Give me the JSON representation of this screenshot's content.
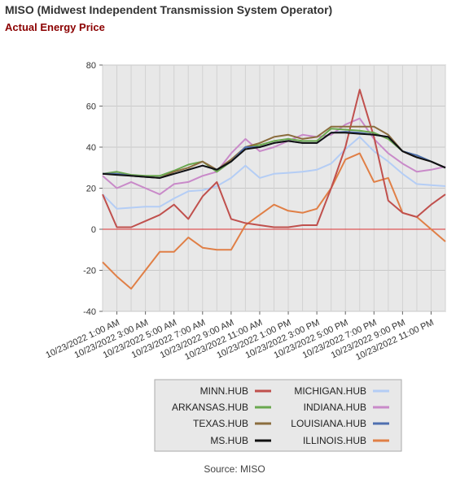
{
  "title": "MISO (Midwest Independent Transmission System Operator)",
  "subtitle": "Actual Energy Price",
  "source": "Source: MISO",
  "chart_data": {
    "type": "line",
    "ylim": [
      -40,
      80
    ],
    "yticks": [
      -40,
      -20,
      0,
      20,
      40,
      60,
      80
    ],
    "xlim": [
      0,
      23
    ],
    "xtick_labels": [
      "10/23/2022 1:00 AM",
      "10/23/2022 3:00 AM",
      "10/23/2022 5:00 AM",
      "10/23/2022 7:00 AM",
      "10/23/2022 9:00 AM",
      "10/23/2022 11:00 AM",
      "10/23/2022 1:00 PM",
      "10/23/2022 3:00 PM",
      "10/23/2022 5:00 PM",
      "10/23/2022 7:00 PM",
      "10/23/2022 9:00 PM",
      "10/23/2022 11:00 PM"
    ],
    "xtick_positions": [
      1,
      3,
      5,
      7,
      9,
      11,
      13,
      15,
      17,
      19,
      21,
      23
    ],
    "zero_line_color": "#dd3333",
    "grid": true,
    "legend_position": "bottom",
    "series": [
      {
        "name": "MINN.HUB",
        "color": "#c0504d",
        "values": [
          17,
          1,
          1,
          4,
          7,
          12,
          5,
          16,
          23,
          5,
          3,
          2,
          1,
          1,
          2,
          2,
          20,
          40,
          68,
          45,
          14,
          8,
          6,
          12,
          17
        ]
      },
      {
        "name": "MICHIGAN.HUB",
        "color": "#b4cdf5",
        "values": [
          17,
          10,
          10.5,
          11,
          11,
          15,
          18.5,
          19,
          21,
          25,
          31,
          25,
          27,
          27.5,
          28,
          29,
          32,
          39,
          45,
          38,
          33,
          27,
          22,
          21.5,
          21
        ]
      },
      {
        "name": "ARKANSAS.HUB",
        "color": "#6aa84f",
        "values": [
          27,
          28,
          26.5,
          26,
          26,
          28.5,
          31.5,
          33,
          28,
          33,
          40,
          41,
          43,
          44,
          43,
          43,
          49,
          48.5,
          48,
          47,
          44,
          38,
          36,
          33,
          30
        ]
      },
      {
        "name": "INDIANA.HUB",
        "color": "#c98ac9",
        "values": [
          26,
          20,
          23,
          20,
          17,
          22,
          23,
          26,
          28,
          37,
          44,
          38,
          40,
          43,
          46,
          45,
          46,
          51,
          54,
          44,
          37,
          32,
          28,
          29,
          30.5
        ]
      },
      {
        "name": "TEXAS.HUB",
        "color": "#8b6d3e",
        "values": [
          27,
          27,
          26,
          25.5,
          25,
          28,
          30,
          33,
          29,
          34,
          40,
          42,
          45,
          46,
          44,
          45,
          50,
          50,
          50,
          50,
          46,
          38,
          35,
          33,
          30
        ]
      },
      {
        "name": "LOUISIANA.HUB",
        "color": "#4f6fb0",
        "values": [
          27,
          27,
          26,
          25.5,
          25,
          27,
          29,
          31,
          29,
          33,
          40,
          40,
          42,
          43,
          42,
          42,
          47,
          47.5,
          47,
          46,
          45,
          38,
          36,
          33,
          30
        ]
      },
      {
        "name": "MS.HUB",
        "color": "#111111",
        "values": [
          27,
          26.5,
          26,
          25.5,
          25,
          27,
          29,
          31,
          29,
          33,
          39,
          40,
          42,
          43,
          42,
          42,
          47,
          47,
          46.5,
          46,
          45,
          38,
          35,
          33,
          30
        ]
      },
      {
        "name": "ILLINOIS.HUB",
        "color": "#e07f46",
        "values": [
          -16,
          -23,
          -29,
          -20,
          -11,
          -11,
          -4,
          -9,
          -10,
          -10,
          2,
          7,
          12,
          9,
          8,
          10,
          20,
          34,
          37,
          23,
          25,
          8,
          6,
          0,
          -6
        ]
      }
    ]
  }
}
